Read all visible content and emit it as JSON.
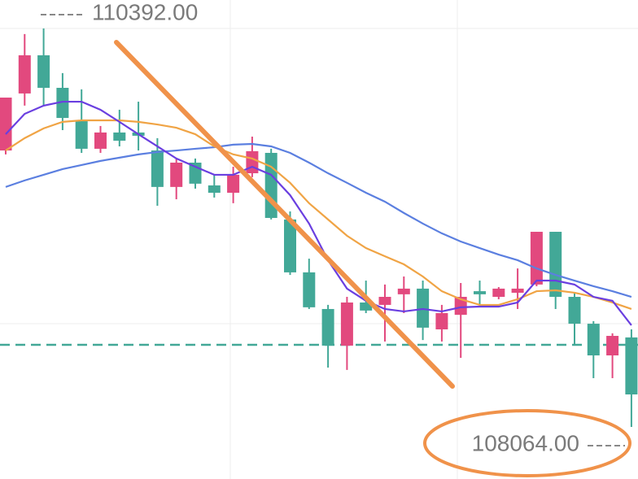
{
  "chart_data": {
    "type": "candlestick",
    "ylim": [
      107760,
      110558
    ],
    "up_color": "#e2497e",
    "down_color": "#42a897",
    "open": [
      109679,
      110012,
      110235,
      110045,
      109855,
      109689,
      109784,
      109784,
      109679,
      109466,
      109608,
      109475,
      109432,
      109546,
      109665,
      109276,
      108967,
      108753,
      108539,
      108791,
      108777,
      108839,
      108872,
      108634,
      108719,
      108857,
      108824,
      108848,
      108896,
      109204,
      108824,
      108667,
      108482,
      108587
    ],
    "high": [
      109988,
      110359,
      110392,
      110131,
      110036,
      109822,
      109917,
      109964,
      109751,
      109632,
      109632,
      109537,
      109584,
      109760,
      109689,
      109323,
      109047,
      108777,
      108824,
      108919,
      108896,
      108943,
      108919,
      108777,
      108905,
      108919,
      108881,
      108990,
      109204,
      109204,
      108848,
      108682,
      108611,
      108634
    ],
    "low": [
      109656,
      109941,
      109941,
      109798,
      109665,
      109665,
      109703,
      109679,
      109356,
      109394,
      109456,
      109404,
      109371,
      109523,
      109276,
      108952,
      108753,
      108411,
      108397,
      108729,
      108563,
      108729,
      108572,
      108563,
      108468,
      108777,
      108810,
      108753,
      108886,
      108753,
      108539,
      108349,
      108349,
      108064
    ],
    "close": [
      109988,
      110235,
      110045,
      109869,
      109689,
      109784,
      109736,
      109765,
      109466,
      109608,
      109485,
      109432,
      109537,
      109675,
      109285,
      108967,
      108763,
      108539,
      108791,
      108744,
      108824,
      108872,
      108644,
      108729,
      108824,
      108839,
      108872,
      108872,
      109204,
      108824,
      108667,
      108482,
      108596,
      108254
    ],
    "lines": [
      {
        "color": "#5b7fe0",
        "values": [
          109466,
          109504,
          109537,
          109570,
          109594,
          109618,
          109637,
          109656,
          109670,
          109679,
          109689,
          109698,
          109713,
          109717,
          109703,
          109665,
          109608,
          109546,
          109490,
          109432,
          109380,
          109314,
          109252,
          109195,
          109147,
          109109,
          109071,
          109038,
          108990,
          108952,
          108919,
          108886,
          108857,
          108824
        ]
      },
      {
        "color": "#f0a445",
        "values": [
          109679,
          109751,
          109808,
          109846,
          109855,
          109855,
          109855,
          109846,
          109831,
          109812,
          109774,
          109703,
          109656,
          109632,
          109584,
          109490,
          109371,
          109276,
          109181,
          109109,
          109061,
          109014,
          108943,
          108857,
          108810,
          108777,
          108777,
          108810,
          108857,
          108862,
          108848,
          108824,
          108791,
          108753
        ]
      },
      {
        "color": "#6a3fe0",
        "values": [
          109774,
          109893,
          109941,
          109964,
          109964,
          109917,
          109846,
          109774,
          109703,
          109632,
          109584,
          109537,
          109537,
          109584,
          109537,
          109418,
          109252,
          109038,
          108872,
          108801,
          108753,
          108739,
          108753,
          108739,
          108763,
          108767,
          108767,
          108791,
          108919,
          108919,
          108896,
          108824,
          108801,
          108658
        ]
      }
    ],
    "reference_line": {
      "value": 108544,
      "color": "#42a897"
    },
    "annotations": [
      {
        "value": 110392,
        "label": "110392.00"
      },
      {
        "value": 108064,
        "label": "108064.00"
      }
    ]
  }
}
